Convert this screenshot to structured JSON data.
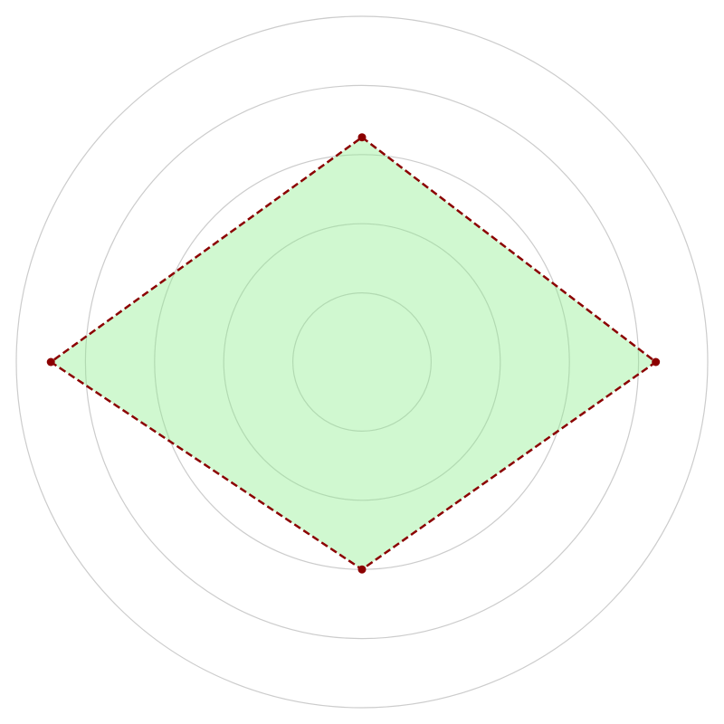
{
  "chart_data": {
    "type": "radar",
    "axes_count": 4,
    "start_angle": "top",
    "direction": "clockwise",
    "r_max": 5,
    "rings": [
      1,
      2,
      3,
      4,
      5
    ],
    "grid": true,
    "series": [
      {
        "values": [
          3.25,
          4.25,
          3.0,
          4.5
        ],
        "fill_color": "#90ee90",
        "fill_opacity": 0.42,
        "line_color": "#8b0000",
        "line_style": "dashed",
        "marker": "circle"
      }
    ],
    "colors": {
      "grid": "#cccccc",
      "background": "#ffffff"
    }
  }
}
